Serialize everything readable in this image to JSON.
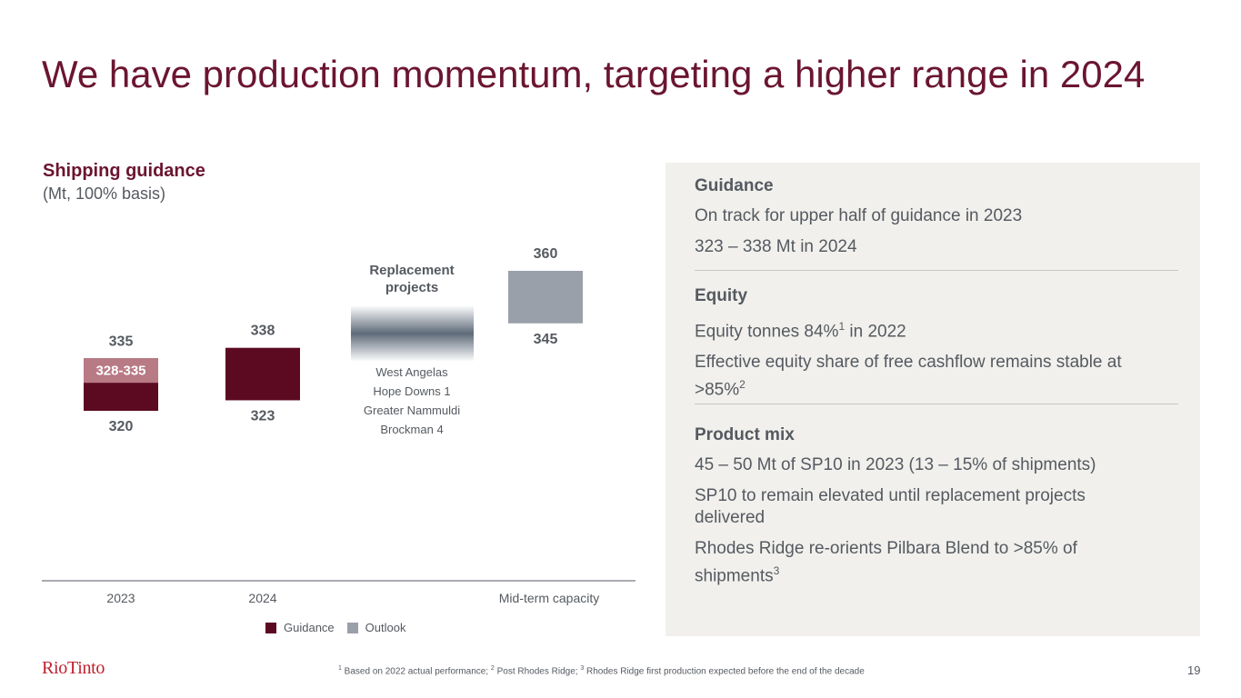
{
  "page": {
    "title": "We have production momentum, targeting a higher range in 2024",
    "page_number": "19",
    "logo_text": "RioTinto"
  },
  "chart_data": {
    "type": "bar",
    "title": "Shipping guidance",
    "subtitle": "(Mt, 100% basis)",
    "categories": [
      "2023",
      "2024",
      "Mid-term capacity"
    ],
    "bars": [
      {
        "category": "2023",
        "series": "Guidance",
        "low": 320,
        "high": 335,
        "low_label": "320",
        "high_label": "335",
        "color": "#5b0a22",
        "overlay": {
          "low": 328,
          "high": 335,
          "label": "328-335",
          "color": "#b87a84"
        }
      },
      {
        "category": "2024",
        "series": "Guidance",
        "low": 323,
        "high": 338,
        "low_label": "323",
        "high_label": "338",
        "color": "#5b0a22"
      },
      {
        "category": "Mid-term capacity",
        "series": "Outlook",
        "low": 345,
        "high": 360,
        "low_label": "345",
        "high_label": "360",
        "color": "#9aa0aa"
      }
    ],
    "replacement_projects": {
      "heading_line1": "Replacement",
      "heading_line2": "projects",
      "projects": [
        "West Angelas",
        "Hope Downs 1",
        "Greater Nammuldi",
        "Brockman 4"
      ]
    },
    "legend": [
      {
        "label": "Guidance",
        "color": "#5b0a22"
      },
      {
        "label": "Outlook",
        "color": "#9aa0aa"
      }
    ],
    "legend_position": "bottom"
  },
  "panel": {
    "guidance": {
      "heading": "Guidance",
      "line1": "On track for upper half of guidance in 2023",
      "line2": "323 – 338 Mt in 2024"
    },
    "equity": {
      "heading": "Equity",
      "line1_text": "Equity tonnes 84%",
      "line1_sup": "1",
      "line1_tail": " in 2022",
      "line2_text": "Effective equity share of free cashflow remains stable at >85%",
      "line2_sup": "2"
    },
    "product_mix": {
      "heading": "Product mix",
      "line1": "45 – 50 Mt of SP10 in 2023 (13 – 15% of shipments)",
      "line2": "SP10 to remain elevated until replacement projects delivered",
      "line3_text": "Rhodes Ridge re-orients Pilbara Blend to >85% of shipments",
      "line3_sup": "3"
    }
  },
  "footnote": {
    "sup1": "1",
    "text1": " Based on 2022 actual performance; ",
    "sup2": "2",
    "text2": " Post Rhodes Ridge; ",
    "sup3": "3",
    "text3": " Rhodes Ridge first production expected before the end of the decade"
  }
}
